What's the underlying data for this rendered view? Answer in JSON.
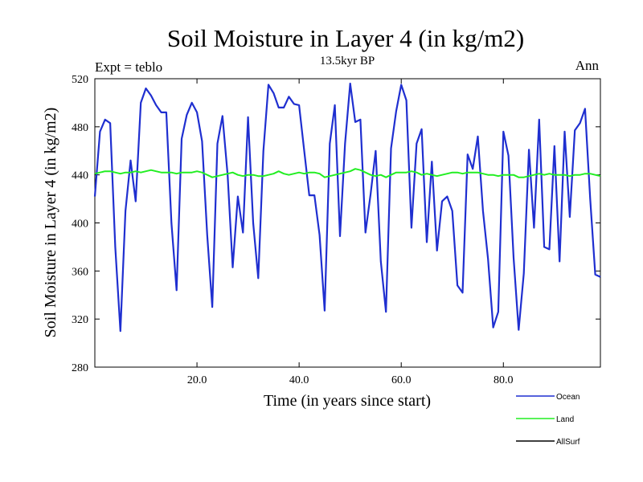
{
  "chart_data": {
    "type": "line",
    "title": "Soil Moisture in Layer 4 (in kg/m2)",
    "subtitle": "13.5kyr BP",
    "left_note": "Expt = teblo",
    "right_note": "Ann",
    "xlabel": "Time (in years since start)",
    "ylabel": "Soil Moisture in Layer 4 (in kg/m2)",
    "xlim": [
      0,
      99
    ],
    "ylim": [
      280,
      520
    ],
    "xticks": [
      20,
      40,
      60,
      80
    ],
    "xtick_labels": [
      "20.0",
      "40.0",
      "60.0",
      "80.0"
    ],
    "yticks": [
      280,
      320,
      360,
      400,
      440,
      480,
      520
    ],
    "ytick_labels": [
      "280",
      "320",
      "360",
      "400",
      "440",
      "480",
      "520"
    ],
    "series": [
      {
        "name": "Ocean",
        "color": "#1f2fd0",
        "x": [
          0,
          1,
          2,
          3,
          4,
          5,
          6,
          7,
          8,
          9,
          10,
          11,
          12,
          13,
          14,
          15,
          16,
          17,
          18,
          19,
          20,
          21,
          22,
          23,
          24,
          25,
          26,
          27,
          28,
          29,
          30,
          31,
          32,
          33,
          34,
          35,
          36,
          37,
          38,
          39,
          40,
          41,
          42,
          43,
          44,
          45,
          46,
          47,
          48,
          49,
          50,
          51,
          52,
          53,
          54,
          55,
          56,
          57,
          58,
          59,
          60,
          61,
          62,
          63,
          64,
          65,
          66,
          67,
          68,
          69,
          70,
          71,
          72,
          73,
          74,
          75,
          76,
          77,
          78,
          79,
          80,
          81,
          82,
          83,
          84,
          85,
          86,
          87,
          88,
          89,
          90,
          91,
          92,
          93,
          94,
          95,
          96,
          97,
          98,
          99
        ],
        "values": [
          422,
          476,
          486,
          483,
          380,
          310,
          410,
          452,
          418,
          500,
          512,
          506,
          498,
          492,
          492,
          400,
          344,
          470,
          490,
          500,
          492,
          468,
          390,
          330,
          466,
          489,
          440,
          363,
          422,
          392,
          488,
          400,
          354,
          460,
          515,
          508,
          496,
          496,
          505,
          499,
          498,
          460,
          423,
          423,
          390,
          327,
          466,
          498,
          389,
          466,
          516,
          484,
          486,
          392,
          424,
          460,
          368,
          326,
          462,
          493,
          515,
          502,
          396,
          466,
          478,
          384,
          451,
          377,
          418,
          422,
          410,
          348,
          342,
          457,
          445,
          472,
          410,
          370,
          313,
          326,
          476,
          456,
          371,
          311,
          358,
          461,
          396,
          486,
          380,
          378,
          464,
          368,
          476,
          405,
          477,
          483,
          495,
          420,
          357,
          355
        ]
      },
      {
        "name": "Land",
        "color": "#22ee22",
        "x": [
          0,
          1,
          2,
          3,
          4,
          5,
          6,
          7,
          8,
          9,
          10,
          11,
          12,
          13,
          14,
          15,
          16,
          17,
          18,
          19,
          20,
          21,
          22,
          23,
          24,
          25,
          26,
          27,
          28,
          29,
          30,
          31,
          32,
          33,
          34,
          35,
          36,
          37,
          38,
          39,
          40,
          41,
          42,
          43,
          44,
          45,
          46,
          47,
          48,
          49,
          50,
          51,
          52,
          53,
          54,
          55,
          56,
          57,
          58,
          59,
          60,
          61,
          62,
          63,
          64,
          65,
          66,
          67,
          68,
          69,
          70,
          71,
          72,
          73,
          74,
          75,
          76,
          77,
          78,
          79,
          80,
          81,
          82,
          83,
          84,
          85,
          86,
          87,
          88,
          89,
          90,
          91,
          92,
          93,
          94,
          95,
          96,
          97,
          98,
          99
        ],
        "values": [
          441,
          442,
          443,
          443,
          442,
          441,
          442,
          442,
          443,
          442,
          443,
          444,
          443,
          442,
          442,
          442,
          441,
          442,
          442,
          442,
          443,
          442,
          440,
          438,
          439,
          440,
          441,
          442,
          440,
          439,
          440,
          440,
          439,
          439,
          440,
          441,
          443,
          441,
          440,
          441,
          442,
          441,
          442,
          442,
          441,
          438,
          439,
          440,
          441,
          442,
          443,
          445,
          444,
          442,
          440,
          439,
          440,
          438,
          440,
          442,
          442,
          442,
          443,
          442,
          440,
          441,
          440,
          439,
          440,
          441,
          442,
          442,
          441,
          442,
          442,
          442,
          441,
          440,
          440,
          439,
          440,
          440,
          440,
          438,
          438,
          439,
          440,
          441,
          440,
          441,
          440,
          440,
          440,
          439,
          440,
          440,
          441,
          441,
          440,
          439
        ]
      },
      {
        "name": "AllSurf",
        "color": "#000000",
        "x": [],
        "values": []
      }
    ]
  }
}
